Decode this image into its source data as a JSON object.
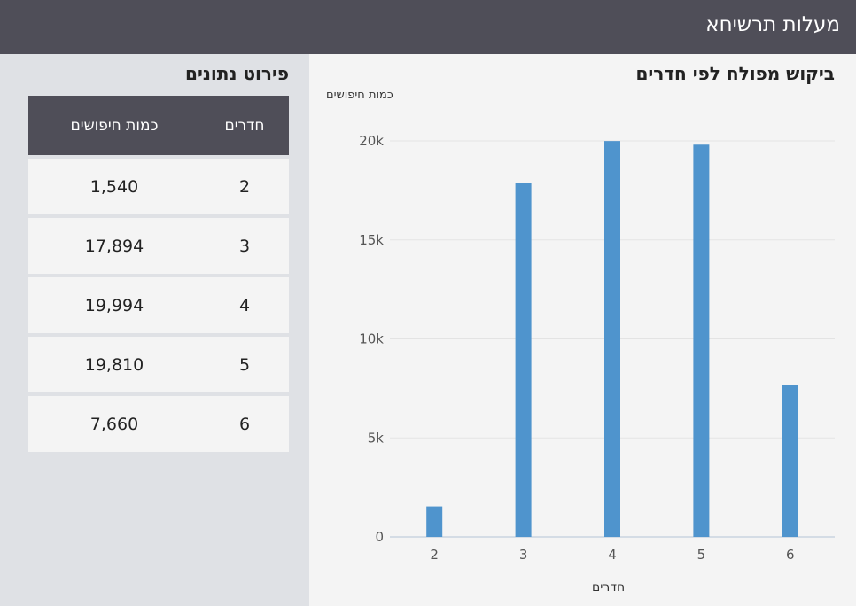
{
  "app": {
    "title": "מעלות תרשיחא"
  },
  "chart_section": {
    "title": "ביקוש מפולח לפי חדרים"
  },
  "table_section": {
    "title": "פירוט נתונים",
    "headers": {
      "rooms": "חדרים",
      "count": "כמות חיפושים"
    },
    "rows": [
      {
        "rooms": "2",
        "count": "1,540"
      },
      {
        "rooms": "3",
        "count": "17,894"
      },
      {
        "rooms": "4",
        "count": "19,994"
      },
      {
        "rooms": "5",
        "count": "19,810"
      },
      {
        "rooms": "6",
        "count": "7,660"
      }
    ]
  },
  "colors": {
    "bar": "#4f94cd",
    "header": "#4f4e58"
  },
  "chart_data": {
    "type": "bar",
    "categories": [
      "2",
      "3",
      "4",
      "5",
      "6"
    ],
    "values": [
      1540,
      17894,
      19994,
      19810,
      7660
    ],
    "xlabel": "חדרים",
    "ylabel": "כמות חיפושים",
    "ylim": [
      0,
      20000
    ],
    "yticks": [
      0,
      5000,
      10000,
      15000,
      20000
    ],
    "ytick_labels": [
      "0",
      "5k",
      "10k",
      "15k",
      "20k"
    ],
    "grid": true
  }
}
